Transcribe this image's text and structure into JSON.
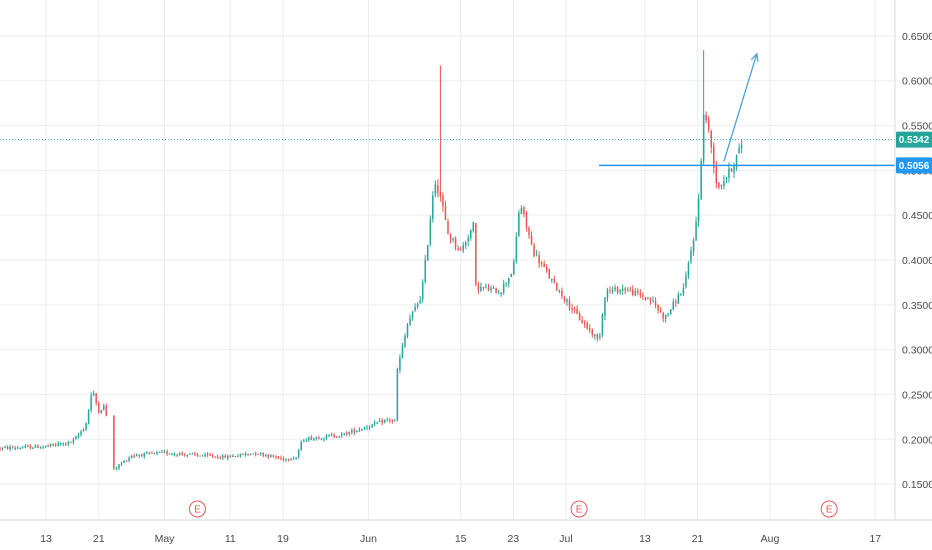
{
  "chart_data": {
    "type": "candlestick",
    "y_axis": {
      "ylim": [
        0.11,
        0.69
      ],
      "ticks": [
        "0.1500",
        "0.2000",
        "0.2500",
        "0.3000",
        "0.3500",
        "0.4000",
        "0.4500",
        "0.5000",
        "0.5500",
        "0.6000",
        "0.6500"
      ],
      "position": "right"
    },
    "x_axis": {
      "ticks": [
        {
          "label": "13",
          "date": "2020-04-13"
        },
        {
          "label": "21",
          "date": "2020-04-21"
        },
        {
          "label": "May",
          "date": "2020-05-01"
        },
        {
          "label": "11",
          "date": "2020-05-11"
        },
        {
          "label": "19",
          "date": "2020-05-19"
        },
        {
          "label": "Jun",
          "date": "2020-06-01"
        },
        {
          "label": "15",
          "date": "2020-06-15"
        },
        {
          "label": "23",
          "date": "2020-06-23"
        },
        {
          "label": "Jul",
          "date": "2020-07-01"
        },
        {
          "label": "13",
          "date": "2020-07-13"
        },
        {
          "label": "21",
          "date": "2020-07-21"
        },
        {
          "label": "Aug",
          "date": "2020-08-01"
        },
        {
          "label": "17",
          "date": "2020-08-17"
        }
      ],
      "range": [
        "2020-04-06",
        "2020-08-20"
      ]
    },
    "grid": true,
    "colors": {
      "up": "#26a69a",
      "down": "#ef5350",
      "grid": "#eceef2",
      "price_line": "#26a69a",
      "horizontal_line": "#2196f3",
      "event": "#e05a5a"
    },
    "price_lines": [
      {
        "label": "0.5342",
        "value": 0.5342,
        "color": "#26a69a",
        "style": "dotted"
      },
      {
        "label": "0.5056",
        "value": 0.5056,
        "color": "#2196f3",
        "style": "solid",
        "from": "2020-07-06"
      }
    ],
    "arrow": {
      "from": {
        "date": "2020-07-25",
        "value": 0.51
      },
      "to": {
        "date": "2020-07-30",
        "value": 0.63
      },
      "color": "#4aa3df"
    },
    "events": [
      {
        "label": "E",
        "date": "2020-05-06"
      },
      {
        "label": "E",
        "date": "2020-07-03"
      },
      {
        "label": "E",
        "date": "2020-08-10"
      }
    ],
    "anchors": [
      [
        "2020-04-06",
        0.19
      ],
      [
        "2020-04-13",
        0.192
      ],
      [
        "2020-04-17",
        0.197
      ],
      [
        "2020-04-19",
        0.215
      ],
      [
        "2020-04-20",
        0.255
      ],
      [
        "2020-04-21",
        0.232
      ],
      [
        "2020-04-22",
        0.238
      ],
      [
        "2020-04-23",
        0.165
      ],
      [
        "2020-04-26",
        0.182
      ],
      [
        "2020-05-01",
        0.185
      ],
      [
        "2020-05-10",
        0.18
      ],
      [
        "2020-05-15",
        0.185
      ],
      [
        "2020-05-19",
        0.178
      ],
      [
        "2020-05-21",
        0.18
      ],
      [
        "2020-05-22",
        0.2
      ],
      [
        "2020-05-28",
        0.205
      ],
      [
        "2020-06-04",
        0.222
      ],
      [
        "2020-06-05",
        0.22
      ],
      [
        "2020-06-05",
        0.265
      ],
      [
        "2020-06-07",
        0.33
      ],
      [
        "2020-06-09",
        0.36
      ],
      [
        "2020-06-10",
        0.42
      ],
      [
        "2020-06-11",
        0.49
      ],
      [
        "2020-06-12",
        0.47
      ],
      [
        "2020-06-13",
        0.43
      ],
      [
        "2020-06-15",
        0.41
      ],
      [
        "2020-06-17",
        0.44
      ],
      [
        "2020-06-17",
        0.37
      ],
      [
        "2020-06-21",
        0.365
      ],
      [
        "2020-06-23",
        0.39
      ],
      [
        "2020-06-24",
        0.465
      ],
      [
        "2020-06-26",
        0.41
      ],
      [
        "2020-06-29",
        0.375
      ],
      [
        "2020-07-03",
        0.335
      ],
      [
        "2020-07-06",
        0.31
      ],
      [
        "2020-07-07",
        0.365
      ],
      [
        "2020-07-10",
        0.368
      ],
      [
        "2020-07-14",
        0.355
      ],
      [
        "2020-07-16",
        0.335
      ],
      [
        "2020-07-19",
        0.37
      ],
      [
        "2020-07-20",
        0.41
      ],
      [
        "2020-07-21",
        0.45
      ],
      [
        "2020-07-22",
        0.57
      ],
      [
        "2020-07-23",
        0.53
      ],
      [
        "2020-07-24",
        0.48
      ],
      [
        "2020-07-26",
        0.5
      ],
      [
        "2020-07-28",
        0.534
      ]
    ],
    "spikes": [
      {
        "date": "2020-06-12",
        "high": 0.617
      },
      {
        "date": "2020-07-22",
        "high": 0.634
      }
    ]
  }
}
